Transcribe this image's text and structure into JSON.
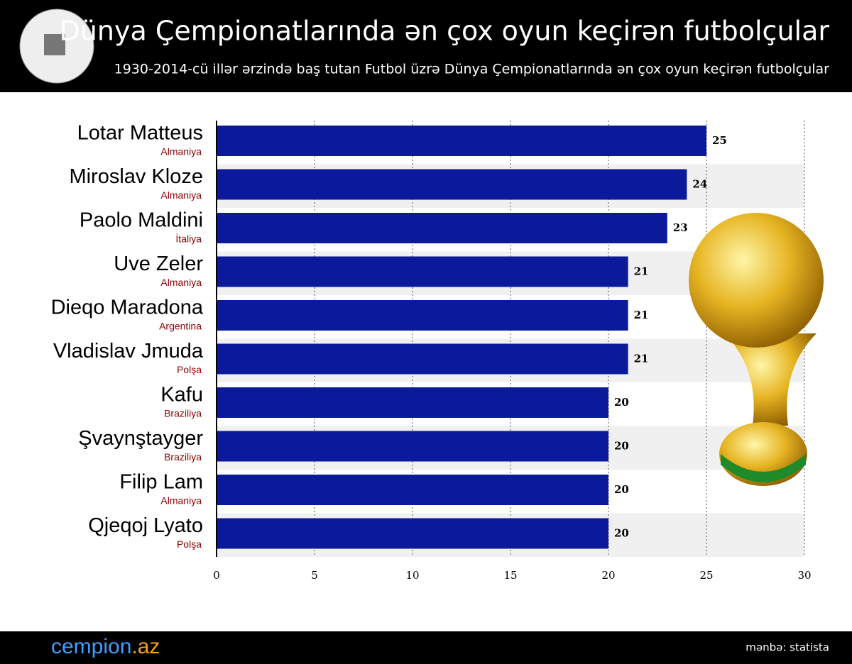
{
  "header": {
    "title": "Dünya Çempionatlarında ən çox oyun keçirən futbolçular",
    "subtitle": "1930-2014-cü illər ərzində baş tutan Futbol üzrə Dünya Çempionatlarında ən çox oyun keçirən futbolçular"
  },
  "chart_data": {
    "type": "bar",
    "orientation": "horizontal",
    "categories": [
      "Lotar Matteus",
      "Miroslav Kloze",
      "Paolo Maldini",
      "Uve Zeler",
      "Dieqo Maradona",
      "Vladislav Jmuda",
      "Kafu",
      "Şvaynştayger",
      "Filip Lam",
      "Qjeqoj Lyato"
    ],
    "countries": [
      "Almaniya",
      "Almaniya",
      "İtaliya",
      "Almaniya",
      "Argentina",
      "Polşa",
      "Braziliya",
      "Braziliya",
      "Almaniya",
      "Polşa"
    ],
    "values": [
      25,
      24,
      23,
      21,
      21,
      21,
      20,
      20,
      20,
      20
    ],
    "color": "#0a1a9a",
    "xlim": [
      0,
      30
    ],
    "xticks": [
      0,
      5,
      10,
      15,
      20,
      25,
      30
    ],
    "grid": true
  },
  "footer": {
    "brand_name": "cempion",
    "brand_tld": ".az",
    "source": "mənbə: statista"
  }
}
